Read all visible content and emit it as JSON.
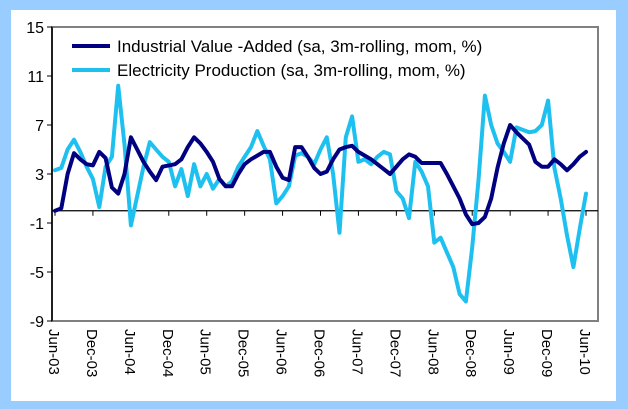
{
  "chart_data": {
    "type": "line",
    "title": "",
    "xlabel": "",
    "ylabel": "",
    "ylim": [
      -9,
      15
    ],
    "yticks": [
      15,
      11,
      7,
      3,
      -1,
      -5,
      -9
    ],
    "grid": false,
    "legend_position": "top-left",
    "x_start": "Jun-03",
    "x_frequency": "monthly",
    "xtick_labels": [
      "Jun-03",
      "Dec-03",
      "Jun-04",
      "Dec-04",
      "Jun-05",
      "Dec-05",
      "Jun-06",
      "Dec-06",
      "Jun-07",
      "Dec-07",
      "Jun-08",
      "Dec-08",
      "Jun-09",
      "Dec-09",
      "Jun-10"
    ],
    "series": [
      {
        "name": "Industrial Value -Added (sa, 3m-rolling, mom, %)",
        "color": "#000080",
        "values": [
          0.0,
          0.2,
          3.0,
          4.7,
          4.2,
          3.8,
          3.7,
          4.8,
          4.3,
          1.9,
          1.4,
          3.0,
          6.0,
          5.0,
          4.0,
          3.2,
          2.5,
          3.6,
          3.7,
          3.8,
          4.2,
          5.2,
          6.0,
          5.5,
          4.8,
          4.0,
          2.6,
          2.0,
          2.0,
          3.0,
          3.8,
          4.2,
          4.5,
          4.8,
          4.8,
          3.6,
          2.7,
          2.5,
          5.2,
          5.2,
          4.4,
          3.5,
          3.0,
          3.2,
          4.2,
          5.0,
          5.2,
          5.3,
          4.8,
          4.5,
          4.2,
          3.8,
          3.4,
          3.0,
          3.6,
          4.2,
          4.6,
          4.4,
          3.9,
          3.9,
          3.9,
          3.9,
          3.0,
          2.0,
          1.0,
          -0.3,
          -1.1,
          -1.0,
          -0.5,
          1.0,
          3.5,
          5.5,
          7.0,
          6.4,
          5.9,
          5.4,
          4.0,
          3.6,
          3.6,
          4.2,
          3.8,
          3.3,
          3.8,
          4.4,
          4.8
        ]
      },
      {
        "name": "Electricity Production (sa, 3m-rolling, mom, %)",
        "color": "#1ec0f0",
        "values": [
          3.3,
          3.5,
          5.0,
          5.8,
          4.8,
          3.6,
          2.6,
          0.3,
          3.6,
          4.4,
          10.2,
          5.4,
          -1.2,
          1.2,
          3.6,
          5.6,
          5.0,
          4.4,
          4.0,
          2.0,
          3.4,
          1.2,
          3.8,
          2.0,
          3.0,
          1.8,
          2.6,
          2.0,
          2.4,
          3.6,
          4.4,
          5.2,
          6.5,
          5.3,
          4.2,
          0.6,
          1.2,
          2.0,
          4.5,
          4.7,
          4.4,
          3.8,
          5.0,
          6.0,
          3.0,
          -1.8,
          6.0,
          7.7,
          4.0,
          4.2,
          3.8,
          4.4,
          4.8,
          4.6,
          1.6,
          1.0,
          -0.6,
          4.0,
          3.2,
          2.0,
          -2.6,
          -2.2,
          -3.4,
          -4.6,
          -6.8,
          -7.4,
          -3.0,
          2.5,
          9.4,
          7.0,
          5.5,
          4.8,
          4.0,
          6.8,
          6.6,
          6.4,
          6.5,
          7.0,
          9.0,
          3.5,
          1.0,
          -2.0,
          -4.6,
          -1.5,
          1.4
        ]
      }
    ]
  }
}
